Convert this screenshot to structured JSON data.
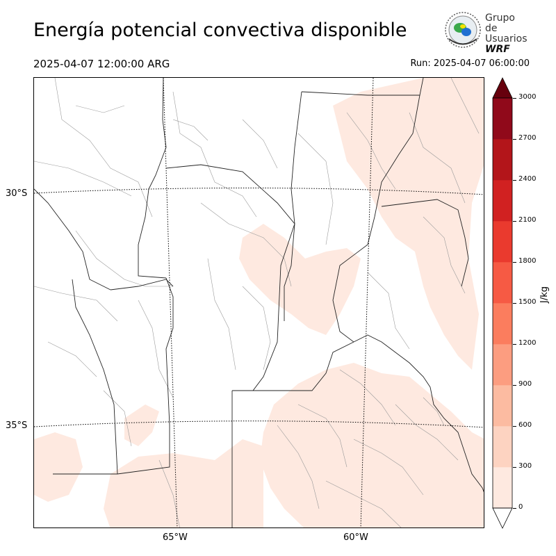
{
  "header": {
    "title": "Energía potencial convectiva disponible",
    "valid_time": "2025-04-07 12:00:00 ARG",
    "run_time": "Run: 2025-04-07 06:00:00"
  },
  "logo": {
    "line1": "Grupo de",
    "line2": "Usuarios",
    "line3": "WRF"
  },
  "map": {
    "latitude_labels": [
      "30°S",
      "35°S"
    ],
    "longitude_labels": [
      "65°W",
      "60°W"
    ]
  },
  "colorbar": {
    "units": "J/kg",
    "ticks": [
      "0",
      "300",
      "600",
      "900",
      "1200",
      "1500",
      "1800",
      "2100",
      "2400",
      "2700",
      "3000"
    ],
    "colors": [
      "#fee9e0",
      "#fdd3c1",
      "#fcbba1",
      "#fc9d80",
      "#fb7d5e",
      "#f65a44",
      "#ea3a2e",
      "#d12121",
      "#b3151a",
      "#90091a",
      "#67000d"
    ],
    "extend": "both"
  },
  "theme": {
    "field_light": "#fee9e0",
    "border_dark": "#222222",
    "border_light": "#9a9a9a"
  }
}
